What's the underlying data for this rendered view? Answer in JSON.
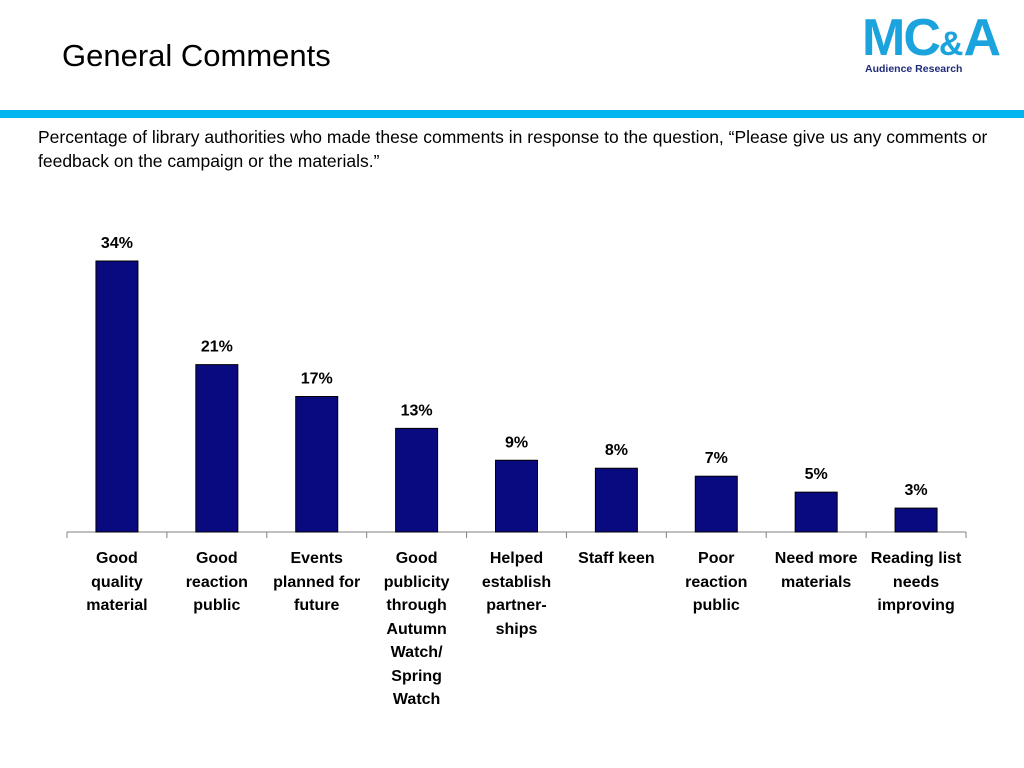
{
  "header": {
    "title": "General Comments",
    "logo_mark": "MC",
    "logo_amp": "&",
    "logo_tail": "A",
    "logo_subtitle": "Audience Research"
  },
  "subtitle": "Percentage of library authorities who made these comments in response to the question, “Please give us any comments or feedback on the campaign or the materials.”",
  "colors": {
    "bar": "#0a0a80",
    "accent": "#00b4f0",
    "logo": "#1aa3dc"
  },
  "chart_data": {
    "type": "bar",
    "title": "",
    "xlabel": "",
    "ylabel": "",
    "ylim": [
      0,
      34
    ],
    "grid": false,
    "categories": [
      "Good quality material",
      "Good reaction public",
      "Events planned for future",
      "Good publicity through Autumn Watch/ Spring Watch",
      "Helped establish partner- ships",
      "Staff keen",
      "Poor reaction public",
      "Need more materials",
      "Reading list needs improving"
    ],
    "values": [
      34,
      21,
      17,
      13,
      9,
      8,
      7,
      5,
      3
    ],
    "data_labels": [
      "34%",
      "21%",
      "17%",
      "13%",
      "9%",
      "8%",
      "7%",
      "5%",
      "3%"
    ]
  }
}
